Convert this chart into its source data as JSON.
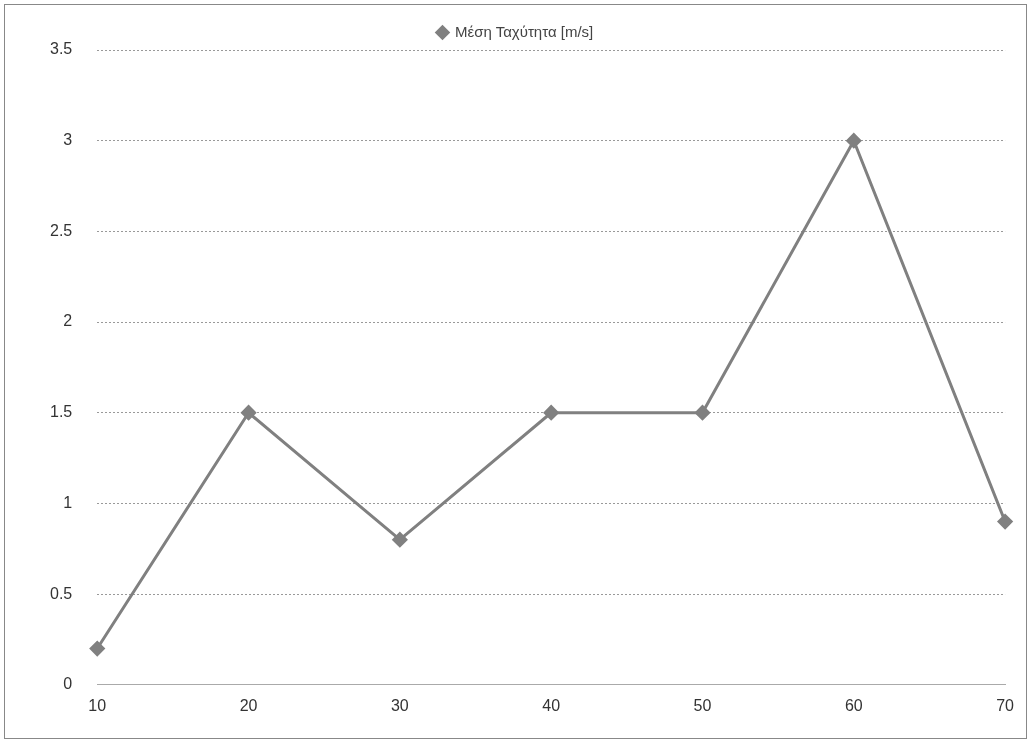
{
  "chart_data": {
    "type": "line",
    "categories": [
      "10",
      "20",
      "30",
      "40",
      "50",
      "60",
      "70"
    ],
    "series": [
      {
        "name": "Μέση Ταχύτητα [m/s]",
        "color": "#808080",
        "values": [
          0.2,
          1.5,
          0.8,
          1.5,
          1.5,
          3.0,
          0.9
        ]
      }
    ],
    "ylim": [
      0,
      3.5
    ],
    "yticks": [
      0,
      0.5,
      1,
      1.5,
      2,
      2.5,
      3,
      3.5
    ],
    "grid": "y",
    "legend": "top",
    "marker": "diamond",
    "line_style": "solid"
  }
}
